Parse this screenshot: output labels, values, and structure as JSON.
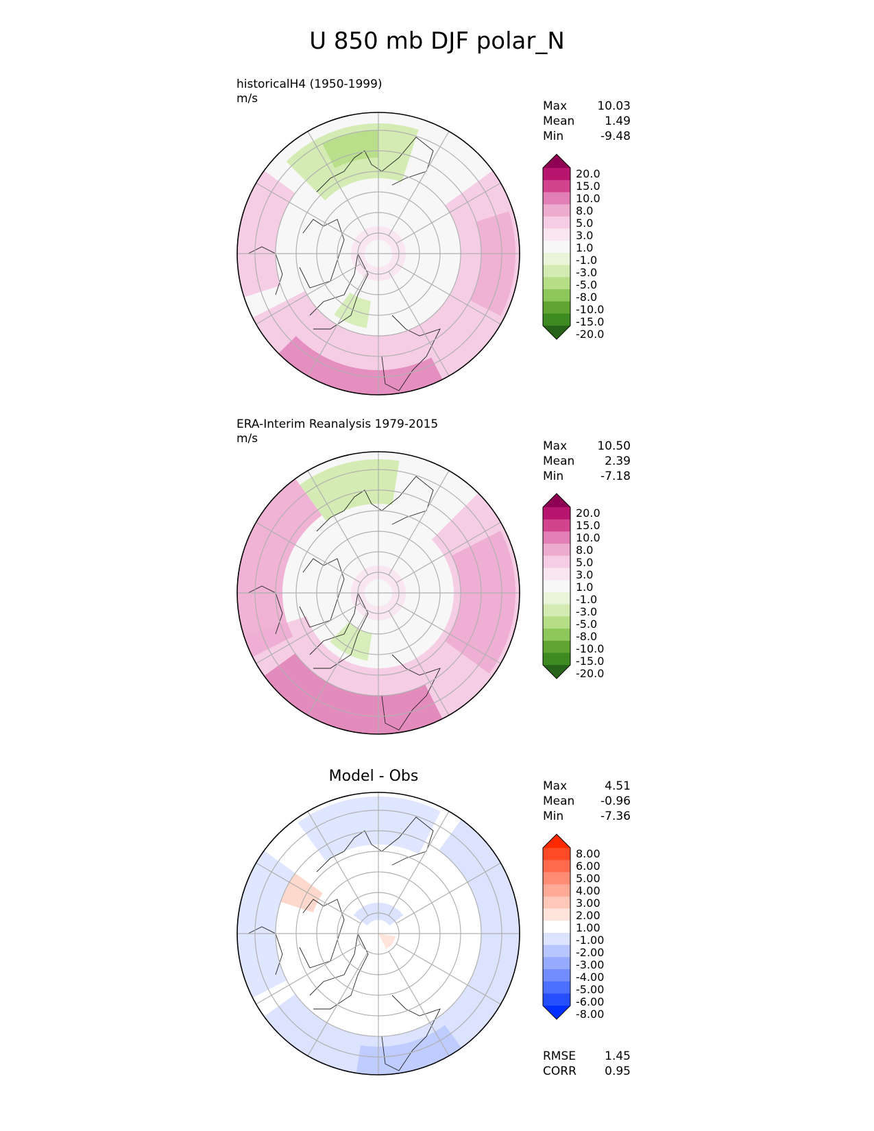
{
  "figure": {
    "title": "U 850 mb DJF polar_N"
  },
  "panels": [
    {
      "label": "historicalH4 (1950-1999)",
      "units": "m/s",
      "stats": [
        {
          "name": "Max",
          "value": "10.03"
        },
        {
          "name": "Mean",
          "value": "1.49"
        },
        {
          "name": "Min",
          "value": "-9.48"
        }
      ],
      "colorbar": {
        "labels": [
          "20.0",
          "15.0",
          "10.0",
          "8.0",
          "5.0",
          "3.0",
          "1.0",
          "-1.0",
          "-3.0",
          "-5.0",
          "-8.0",
          "-10.0",
          "-15.0",
          "-20.0"
        ],
        "colors": [
          "#8e0152",
          "#b8156f",
          "#d3448e",
          "#e17fb6",
          "#eeabd0",
          "#f5cde4",
          "#fae6f1",
          "#f7f7f7",
          "#e9f5d9",
          "#d4ecb3",
          "#b6de86",
          "#8fc85a",
          "#63a532",
          "#3d8a20",
          "#276419"
        ]
      }
    },
    {
      "label": "ERA-Interim Reanalysis 1979-2015",
      "units": "m/s",
      "stats": [
        {
          "name": "Max",
          "value": "10.50"
        },
        {
          "name": "Mean",
          "value": "2.39"
        },
        {
          "name": "Min",
          "value": "-7.18"
        }
      ],
      "colorbar": {
        "labels": [
          "20.0",
          "15.0",
          "10.0",
          "8.0",
          "5.0",
          "3.0",
          "1.0",
          "-1.0",
          "-3.0",
          "-5.0",
          "-8.0",
          "-10.0",
          "-15.0",
          "-20.0"
        ],
        "colors": [
          "#8e0152",
          "#b8156f",
          "#d3448e",
          "#e17fb6",
          "#eeabd0",
          "#f5cde4",
          "#fae6f1",
          "#f7f7f7",
          "#e9f5d9",
          "#d4ecb3",
          "#b6de86",
          "#8fc85a",
          "#63a532",
          "#3d8a20",
          "#276419"
        ]
      }
    },
    {
      "label": "Model - Obs",
      "units": "",
      "stats": [
        {
          "name": "Max",
          "value": "4.51"
        },
        {
          "name": "Mean",
          "value": "-0.96"
        },
        {
          "name": "Min",
          "value": "-7.36"
        }
      ],
      "extra_stats": [
        {
          "name": "RMSE",
          "value": "1.45"
        },
        {
          "name": "CORR",
          "value": "0.95"
        }
      ],
      "colorbar": {
        "labels": [
          "8.00",
          "6.00",
          "5.00",
          "4.00",
          "3.00",
          "2.00",
          "1.00",
          "-1.00",
          "-2.00",
          "-3.00",
          "-4.00",
          "-5.00",
          "-6.00",
          "-8.00"
        ],
        "colors": [
          "#ff2a00",
          "#ff4a26",
          "#ff6a4d",
          "#ff8c73",
          "#ffaa96",
          "#ffc8b8",
          "#ffe4db",
          "#ffffff",
          "#dbe3ff",
          "#b8c6ff",
          "#96aaff",
          "#738dff",
          "#4d6fff",
          "#2650ff",
          "#0030ff"
        ]
      }
    }
  ]
}
